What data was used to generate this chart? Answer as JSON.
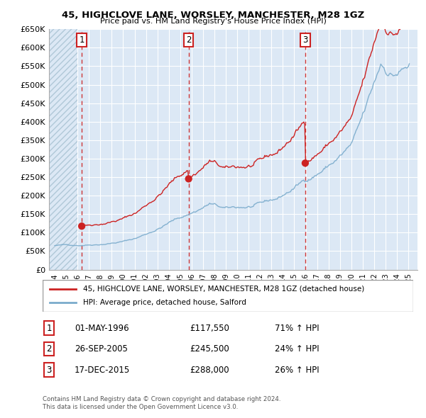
{
  "title": "45, HIGHCLOVE LANE, WORSLEY, MANCHESTER, M28 1GZ",
  "subtitle": "Price paid vs. HM Land Registry's House Price Index (HPI)",
  "ylim": [
    0,
    650000
  ],
  "yticks": [
    0,
    50000,
    100000,
    150000,
    200000,
    250000,
    300000,
    350000,
    400000,
    450000,
    500000,
    550000,
    600000,
    650000
  ],
  "ytick_labels": [
    "£0",
    "£50K",
    "£100K",
    "£150K",
    "£200K",
    "£250K",
    "£300K",
    "£350K",
    "£400K",
    "£450K",
    "£500K",
    "£550K",
    "£600K",
    "£650K"
  ],
  "sale_dates": [
    1996.37,
    2005.74,
    2015.96
  ],
  "sale_prices": [
    117550,
    245500,
    288000
  ],
  "sale_labels": [
    "1",
    "2",
    "3"
  ],
  "sale_label_dates": [
    "01-MAY-1996",
    "26-SEP-2005",
    "17-DEC-2015"
  ],
  "sale_label_prices": [
    "£117,550",
    "£245,500",
    "£288,000"
  ],
  "sale_label_hpi": [
    "71% ↑ HPI",
    "24% ↑ HPI",
    "26% ↑ HPI"
  ],
  "property_color": "#cc2222",
  "hpi_color": "#7aabcc",
  "vline_color": "#cc2222",
  "background_color": "#ffffff",
  "chart_bg_color": "#dce8f5",
  "grid_color": "#ffffff",
  "legend_property": "45, HIGHCLOVE LANE, WORSLEY, MANCHESTER, M28 1GZ (detached house)",
  "legend_hpi": "HPI: Average price, detached house, Salford",
  "footnote1": "Contains HM Land Registry data © Crown copyright and database right 2024.",
  "footnote2": "This data is licensed under the Open Government Licence v3.0.",
  "xlim_left": 1993.5,
  "xlim_right": 2025.8
}
